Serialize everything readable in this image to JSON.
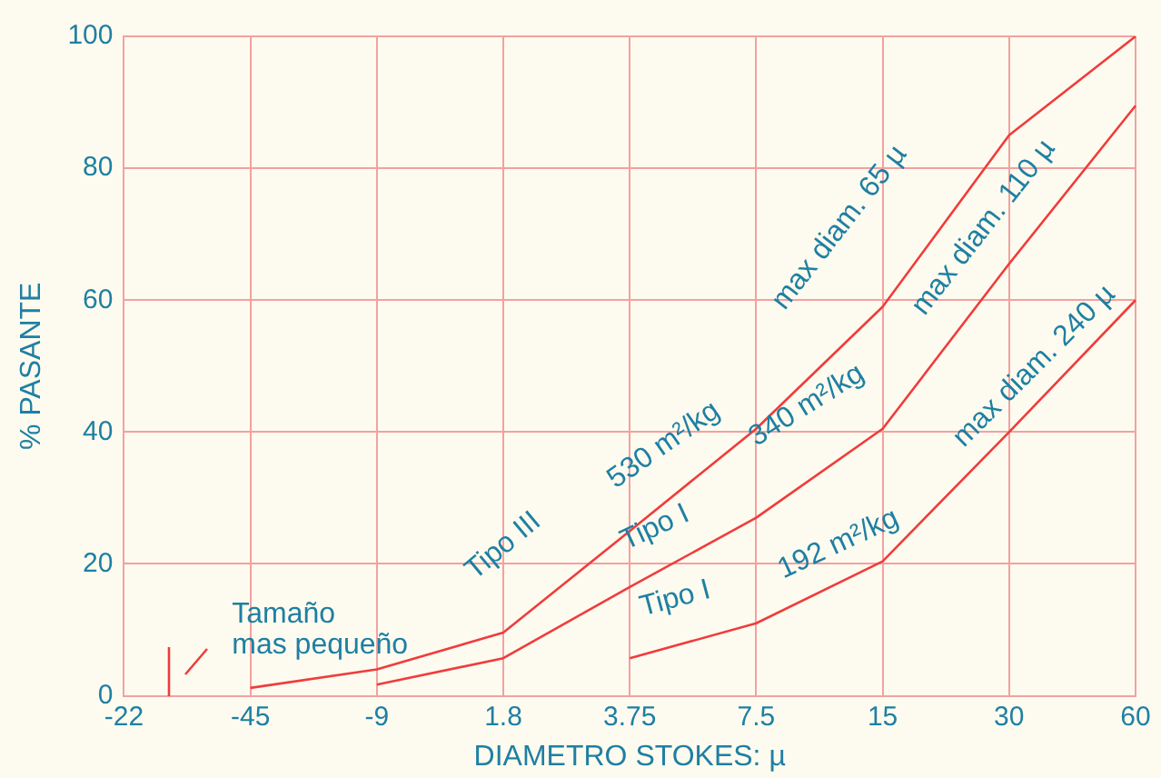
{
  "chart_data": {
    "type": "line",
    "xlabel": "DIAMETRO STOKES: µ",
    "ylabel": "% PASANTE",
    "categories": [
      "-22",
      "-45",
      "-9",
      "1.8",
      "3.75",
      "7.5",
      "15",
      "30",
      "60"
    ],
    "ylim": [
      0,
      100
    ],
    "yticks": [
      0,
      20,
      40,
      60,
      80,
      100
    ],
    "grid": true,
    "marker": "none",
    "line_style": "solid",
    "series": [
      {
        "color": "#f03c3c",
        "values": [
          null,
          1.2,
          4,
          9.6,
          25,
          40.5,
          59,
          85,
          100
        ]
      },
      {
        "color": "#f03c3c",
        "values": [
          null,
          null,
          1.7,
          5.7,
          16.5,
          27,
          40.5,
          65.5,
          89.5
        ]
      },
      {
        "color": "#f03c3c",
        "values": [
          null,
          null,
          null,
          null,
          5.7,
          11,
          20.4,
          40,
          60
        ]
      }
    ],
    "annotations": [
      "Tamaño\nmas pequeño",
      "Tipo III",
      "530 m²/kg",
      "max diam. 65 µ",
      "Tipo I",
      "340 m²/kg",
      "max diam. 110 µ",
      "Tipo I",
      "192 m²/kg",
      "max diam. 240 µ"
    ]
  }
}
